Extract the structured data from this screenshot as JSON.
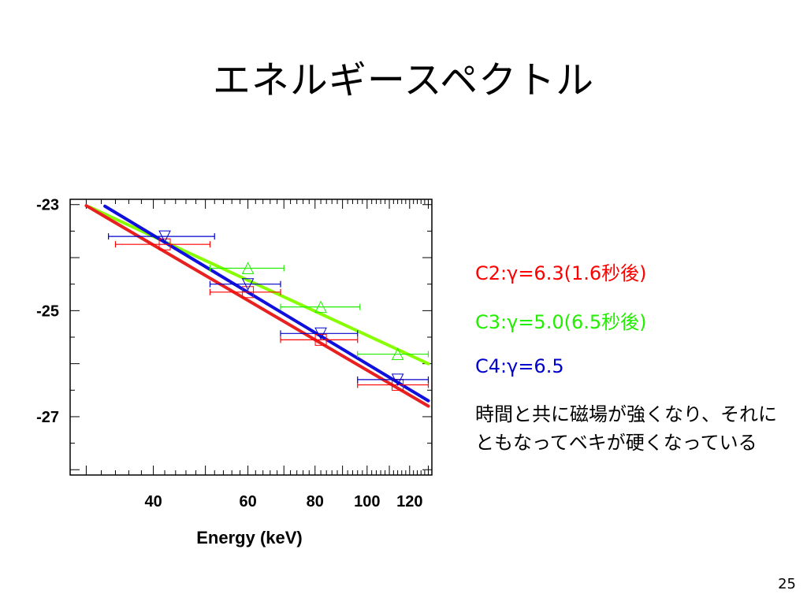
{
  "slide": {
    "title": "エネルギースペクトル",
    "page_number": "25"
  },
  "notes": {
    "c2": "C2:γ=6.3(1.6秒後)",
    "c3": "C3:γ=5.0(6.5秒後)",
    "c4": "C4:γ=6.5",
    "description": "時間と共に磁場が強くなり、それにともなってベキが硬くなっている"
  },
  "colors": {
    "c2": "#ff0000",
    "c3": "#22ee00",
    "c4": "#0000cc",
    "c2_fit": "#e82020",
    "c3_fit": "#88ff00",
    "c4_fit": "#1010dd"
  },
  "chart_data": {
    "type": "scatter",
    "xlabel": "Energy (keV)",
    "ylabel": "",
    "x_scale": "log",
    "xlim": [
      28,
      132
    ],
    "ylim": [
      -28.1,
      -22.9
    ],
    "x_ticks": [
      40,
      60,
      80,
      100,
      120
    ],
    "y_ticks": [
      -23,
      -25,
      -27
    ],
    "series": [
      {
        "name": "C2",
        "color": "#ff0000",
        "marker": "square",
        "points": [
          {
            "x": 42,
            "y": -23.75,
            "xlo": 34,
            "xhi": 51
          },
          {
            "x": 60,
            "y": -24.65,
            "xlo": 51,
            "xhi": 69
          },
          {
            "x": 82,
            "y": -25.55,
            "xlo": 69,
            "xhi": 96
          },
          {
            "x": 114,
            "y": -26.4,
            "xlo": 96,
            "xhi": 130
          }
        ],
        "fit": [
          {
            "x": 30,
            "y": -23.02
          },
          {
            "x": 130,
            "y": -26.8
          }
        ]
      },
      {
        "name": "C3",
        "color": "#22ee00",
        "marker": "triangle-up",
        "points": [
          {
            "x": 60,
            "y": -24.2,
            "xlo": 51,
            "xhi": 70
          },
          {
            "x": 82,
            "y": -24.93,
            "xlo": 69,
            "xhi": 97
          },
          {
            "x": 114,
            "y": -25.82,
            "xlo": 96,
            "xhi": 130
          }
        ],
        "fit": [
          {
            "x": 30.5,
            "y": -23.05
          },
          {
            "x": 130,
            "y": -26.0
          }
        ]
      },
      {
        "name": "C4",
        "color": "#0000cc",
        "marker": "triangle-down",
        "points": [
          {
            "x": 42,
            "y": -23.6,
            "xlo": 33,
            "xhi": 52
          },
          {
            "x": 60,
            "y": -24.5,
            "xlo": 51,
            "xhi": 69
          },
          {
            "x": 82,
            "y": -25.43,
            "xlo": 69,
            "xhi": 96
          },
          {
            "x": 114,
            "y": -26.3,
            "xlo": 96,
            "xhi": 130
          }
        ],
        "fit": [
          {
            "x": 32.5,
            "y": -23.03
          },
          {
            "x": 130,
            "y": -26.7
          }
        ]
      }
    ]
  }
}
